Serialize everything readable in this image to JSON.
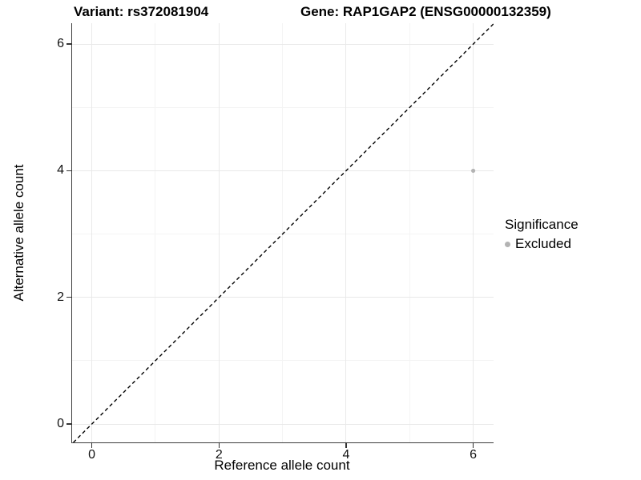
{
  "chart_data": {
    "type": "scatter",
    "title_left": "Variant: rs372081904",
    "title_right": "Gene: RAP1GAP2 (ENSG00000132359)",
    "xlabel": "Reference allele count",
    "ylabel": "Alternative allele count",
    "xlim": [
      -0.31,
      6.32
    ],
    "ylim": [
      -0.29,
      6.33
    ],
    "x_major_ticks": [
      0,
      2,
      4,
      6
    ],
    "x_minor_ticks": [
      1,
      3,
      5
    ],
    "y_major_ticks": [
      0,
      2,
      4,
      6
    ],
    "y_minor_ticks": [
      1,
      3,
      5
    ],
    "grid": true,
    "identity_line": {
      "equation": "y = x",
      "style": "dashed",
      "color": "#000000"
    },
    "series": [
      {
        "name": "Excluded",
        "color": "#b3b3b3",
        "points": [
          {
            "x": 6,
            "y": 4
          }
        ]
      }
    ],
    "legend": {
      "position": "right",
      "title": "Significance",
      "items": [
        {
          "label": "Excluded",
          "color": "#b3b3b3"
        }
      ]
    },
    "colors": {
      "background": "#ffffff",
      "major_grid": "#e9e9e9",
      "minor_grid": "#f4f4f4",
      "axis_line": "#3c3c3c",
      "tick_text": "#111111",
      "point": "#b3b3b3"
    }
  }
}
